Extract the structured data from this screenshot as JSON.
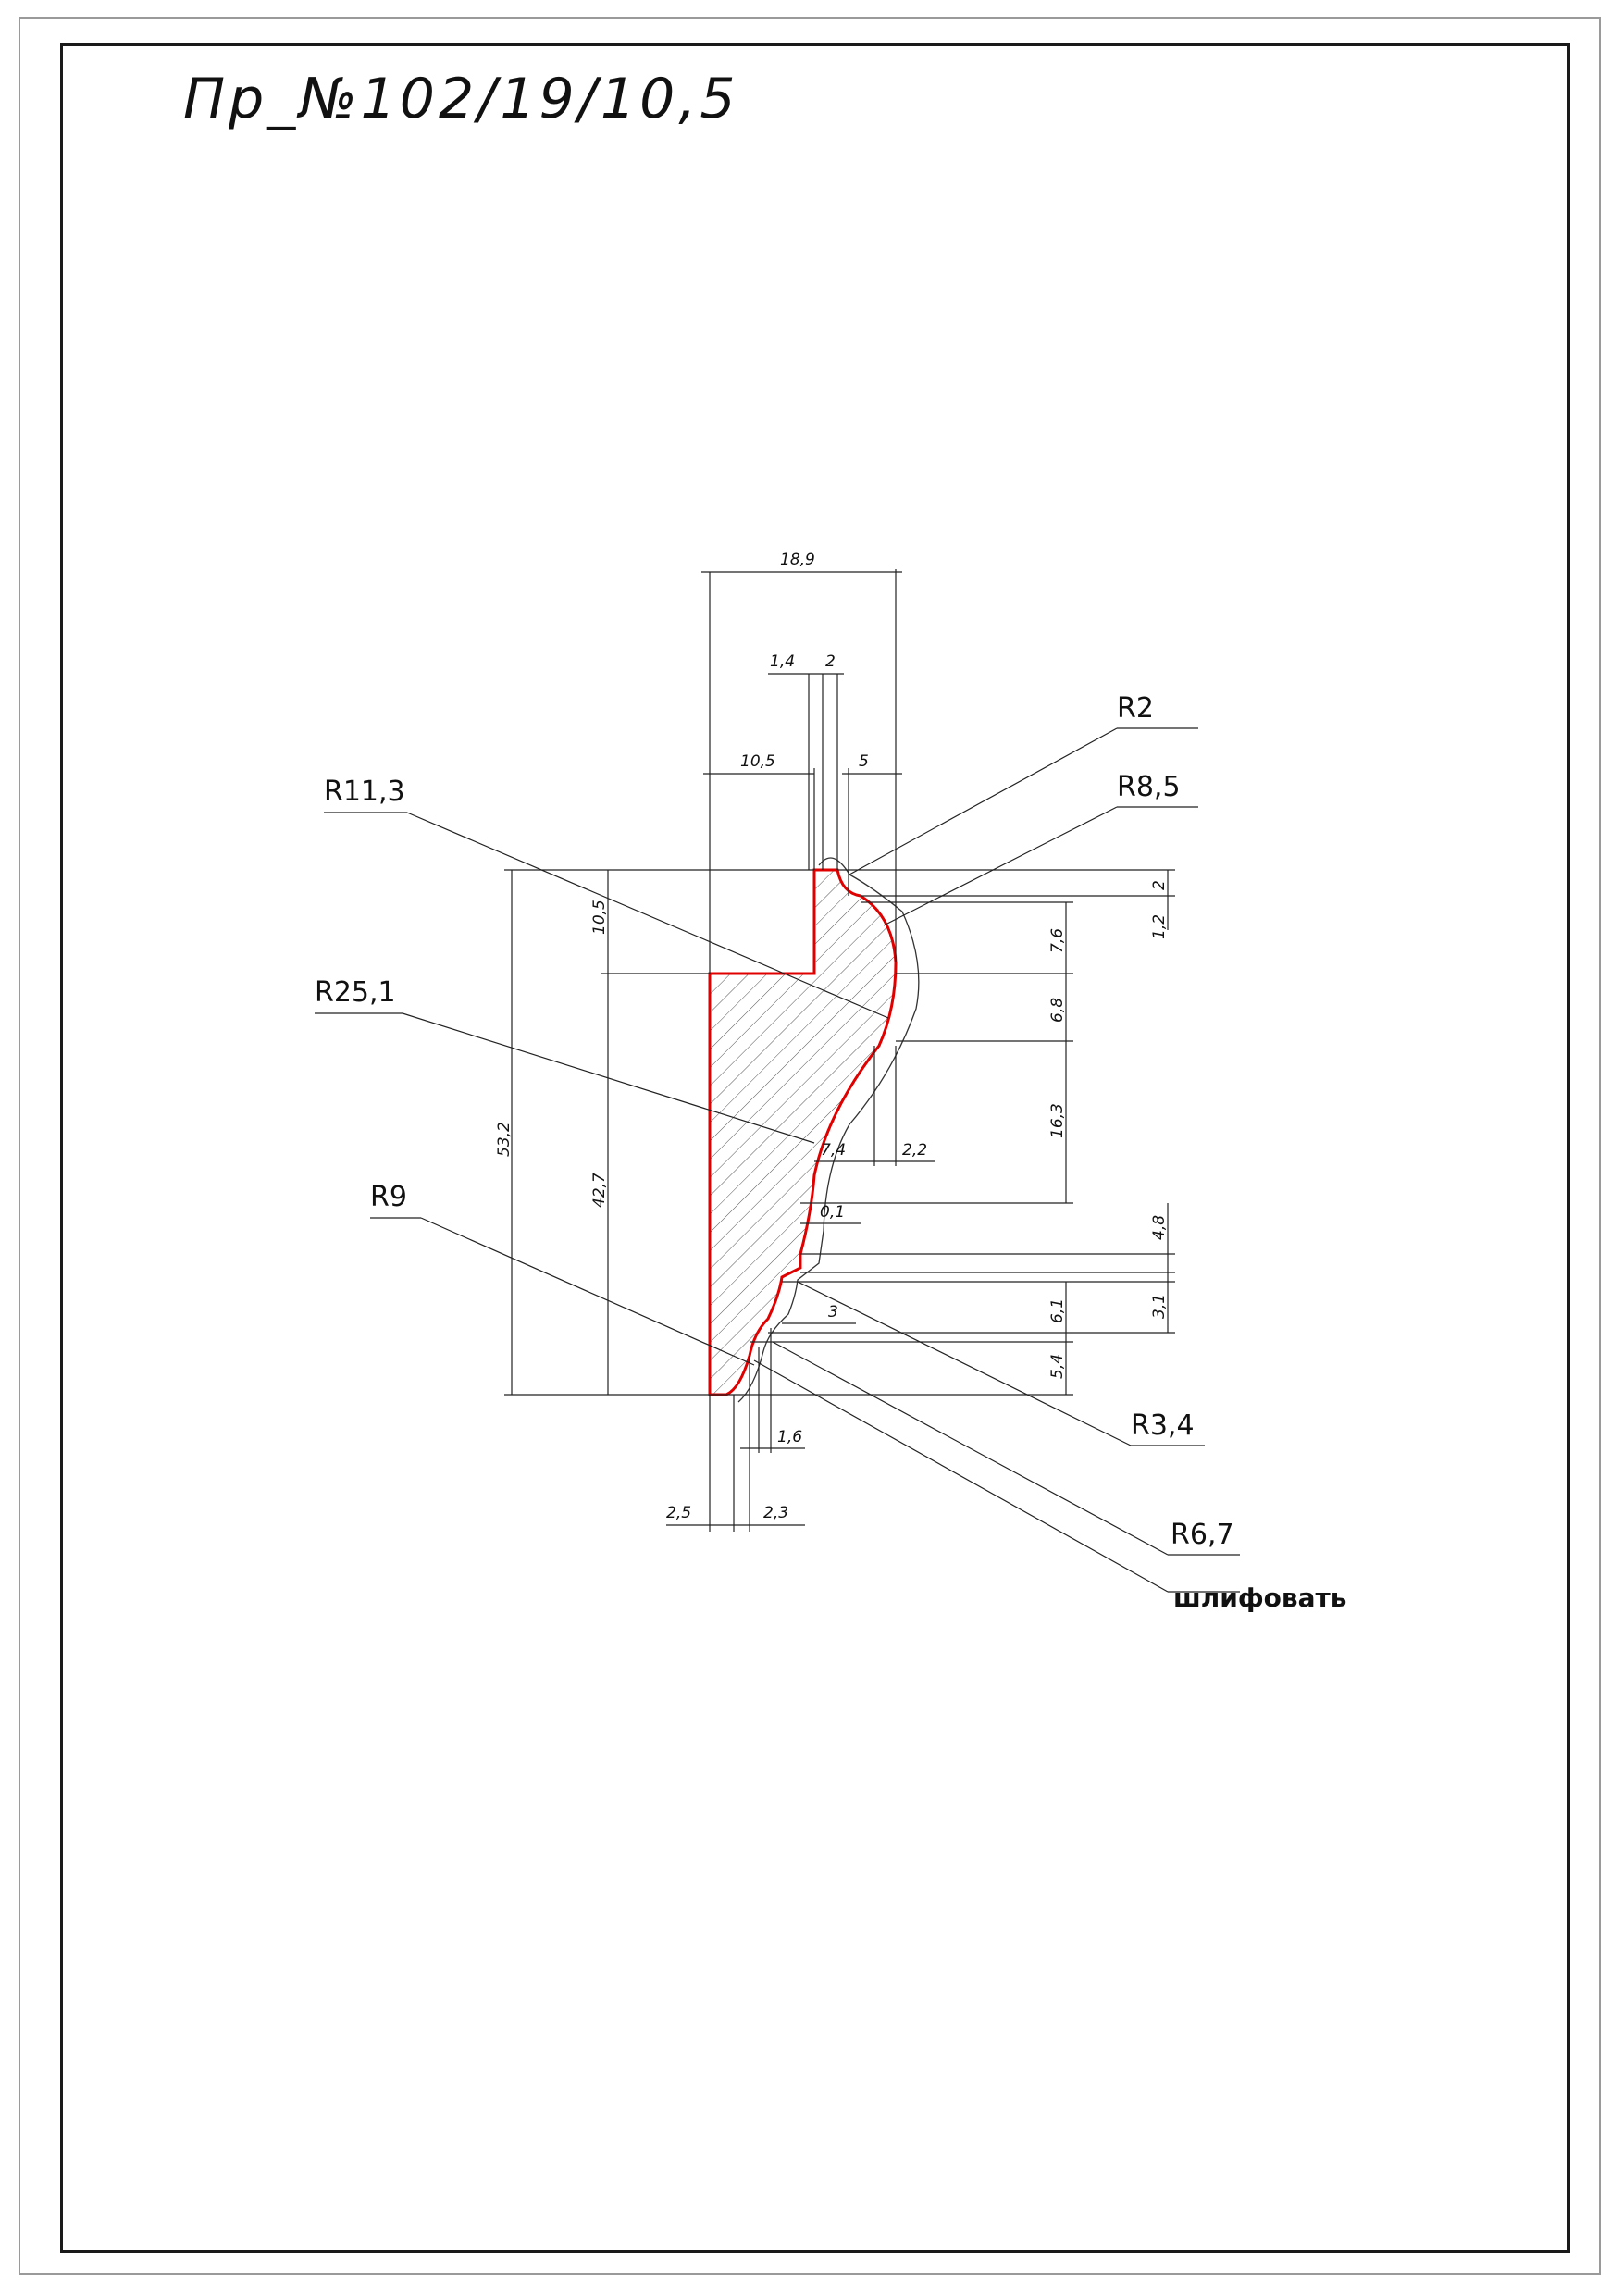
{
  "title": "Пр_№102/19/10,5",
  "dimensions": {
    "total_width": "18,9",
    "d_1_4": "1,4",
    "d_2_top": "2",
    "d_10_5_top": "10,5",
    "d_5": "5",
    "d_10_5_left": "10,5",
    "d_53_2": "53,2",
    "d_42_7": "42,7",
    "r_2": "2",
    "r_1_2": "1,2",
    "r_7_6": "7,6",
    "r_6_8": "6,8",
    "r_16_3": "16,3",
    "r_4_8": "4,8",
    "r_3_1": "3,1",
    "r_6_1": "6,1",
    "r_5_4": "5,4",
    "m_7_4": "7,4",
    "m_2_2": "2,2",
    "m_0_1": "0,1",
    "m_3": "3",
    "b_1_6": "1,6",
    "b_2_5": "2,5",
    "b_2_3": "2,3"
  },
  "callouts": {
    "r11_3": "R11,3",
    "r2": "R2",
    "r8_5": "R8,5",
    "r25_1": "R25,1",
    "r9": "R9",
    "r3_4": "R3,4",
    "r6_7": "R6,7",
    "grind": "шлифовать"
  },
  "colors": {
    "profile_outline": "#e00000",
    "lines": "#222222"
  }
}
